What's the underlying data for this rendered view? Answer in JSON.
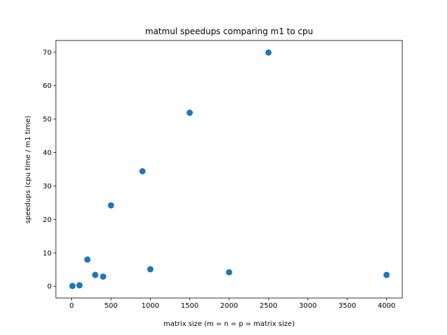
{
  "chart_data": {
    "type": "scatter",
    "title": "matmul speedups comparing m1 to cpu",
    "xlabel": "matrix size (m = n = p = matrix size)",
    "ylabel": "speedups (cpu time / m1 time)",
    "xlim": [
      -200,
      4200
    ],
    "ylim": [
      -3.5,
      73.5
    ],
    "xticks": [
      0,
      500,
      1000,
      1500,
      2000,
      2500,
      3000,
      3500,
      4000
    ],
    "yticks": [
      0,
      10,
      20,
      30,
      40,
      50,
      60,
      70
    ],
    "grid": false,
    "series": [
      {
        "color": "#1f77b4",
        "points": [
          {
            "x": 10,
            "y": 0.1
          },
          {
            "x": 100,
            "y": 0.3
          },
          {
            "x": 200,
            "y": 8.0
          },
          {
            "x": 300,
            "y": 3.4
          },
          {
            "x": 400,
            "y": 2.9
          },
          {
            "x": 500,
            "y": 24.2
          },
          {
            "x": 900,
            "y": 34.4
          },
          {
            "x": 1000,
            "y": 5.1
          },
          {
            "x": 1500,
            "y": 51.9
          },
          {
            "x": 2000,
            "y": 4.2
          },
          {
            "x": 2500,
            "y": 69.9
          },
          {
            "x": 4000,
            "y": 3.4
          }
        ]
      }
    ]
  }
}
